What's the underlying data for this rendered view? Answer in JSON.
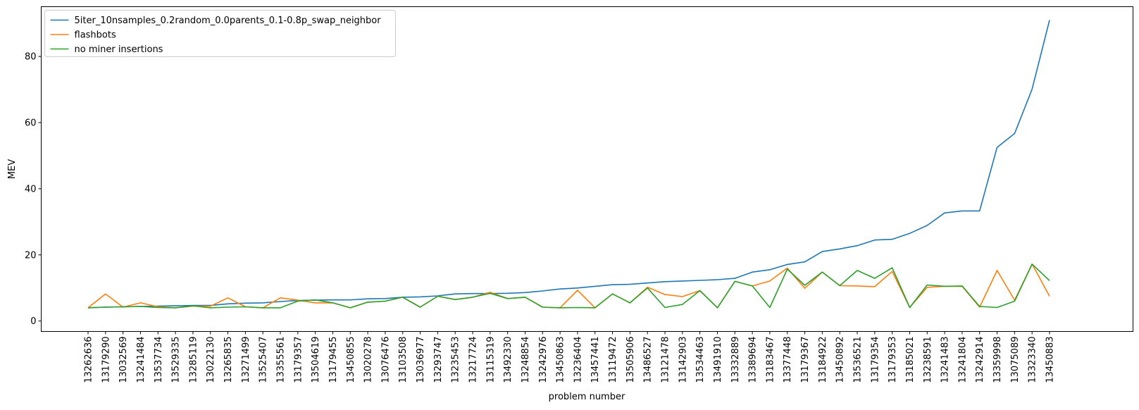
{
  "chart_data": {
    "type": "line",
    "title": "",
    "xlabel": "problem number",
    "ylabel": "MEV",
    "ylim": [
      0,
      95
    ],
    "yticks": [
      0,
      20,
      40,
      60,
      80
    ],
    "grid": false,
    "legend_position": "top-left",
    "categories": [
      "13262636",
      "13179290",
      "13032569",
      "13241484",
      "13537734",
      "13529335",
      "13285119",
      "13022130",
      "13265835",
      "13271499",
      "13525407",
      "13355561",
      "13179357",
      "13504619",
      "13179455",
      "13450855",
      "13020278",
      "13076476",
      "13103508",
      "13036977",
      "13293747",
      "13235453",
      "13217724",
      "13115319",
      "13492330",
      "13248854",
      "13242976",
      "13450863",
      "13236404",
      "13457441",
      "13119472",
      "13505906",
      "13486527",
      "13121478",
      "13142903",
      "13534463",
      "13491910",
      "13332889",
      "13389694",
      "13183467",
      "13377448",
      "13179367",
      "13184922",
      "13450892",
      "13536521",
      "13179354",
      "13179353",
      "13185021",
      "13238591",
      "13241483",
      "13241804",
      "13242914",
      "13359998",
      "13075089",
      "13323340",
      "13450883"
    ],
    "series": [
      {
        "name": "5iter_10nsamples_0.2random_0.0parents_0.1-0.8p_swap_neighbor",
        "color": "#1f77b4",
        "values": [
          4.0,
          4.2,
          4.3,
          4.4,
          4.5,
          4.6,
          4.7,
          4.7,
          5.2,
          5.4,
          5.5,
          5.9,
          6.2,
          6.3,
          6.4,
          6.4,
          6.7,
          6.8,
          7.2,
          7.3,
          7.6,
          8.2,
          8.3,
          8.3,
          8.4,
          8.6,
          9.1,
          9.7,
          10.0,
          10.5,
          11.0,
          11.1,
          11.5,
          11.9,
          12.1,
          12.3,
          12.5,
          12.9,
          14.8,
          15.5,
          17.1,
          17.9,
          21.0,
          21.8,
          22.8,
          24.5,
          24.7,
          26.5,
          28.9,
          32.7,
          33.3,
          33.3,
          52.5,
          56.7,
          70.1,
          91.0
        ]
      },
      {
        "name": "flashbots",
        "color": "#ff7f0e",
        "values": [
          4.0,
          8.2,
          4.2,
          5.5,
          4.3,
          4.0,
          4.5,
          4.5,
          7.0,
          4.3,
          4.0,
          7.0,
          6.3,
          5.5,
          5.5,
          4.0,
          5.7,
          6.0,
          7.2,
          4.2,
          7.5,
          6.5,
          7.2,
          8.7,
          6.8,
          7.2,
          4.2,
          4.0,
          9.3,
          4.0,
          8.2,
          5.5,
          10.2,
          8.0,
          7.4,
          9.2,
          4.0,
          12.0,
          10.6,
          12.1,
          16.0,
          9.9,
          14.8,
          10.7,
          10.6,
          10.4,
          15.0,
          4.1,
          10.2,
          10.5,
          10.5,
          4.2,
          15.3,
          6.3,
          17.2,
          7.5
        ]
      },
      {
        "name": "no miner insertions",
        "color": "#2ca02c",
        "values": [
          4.0,
          4.2,
          4.3,
          4.4,
          4.1,
          4.0,
          4.6,
          4.0,
          4.2,
          4.3,
          4.0,
          4.0,
          6.0,
          6.4,
          5.5,
          4.0,
          5.7,
          6.0,
          7.2,
          4.2,
          7.5,
          6.5,
          7.2,
          8.4,
          6.8,
          7.2,
          4.2,
          4.0,
          4.1,
          4.0,
          8.2,
          5.5,
          10.0,
          4.1,
          5.0,
          9.2,
          4.0,
          12.0,
          10.6,
          4.1,
          15.7,
          10.8,
          14.8,
          10.7,
          15.3,
          12.9,
          16.1,
          4.1,
          10.9,
          10.5,
          10.6,
          4.4,
          4.1,
          6.0,
          17.2,
          12.2
        ]
      }
    ]
  }
}
